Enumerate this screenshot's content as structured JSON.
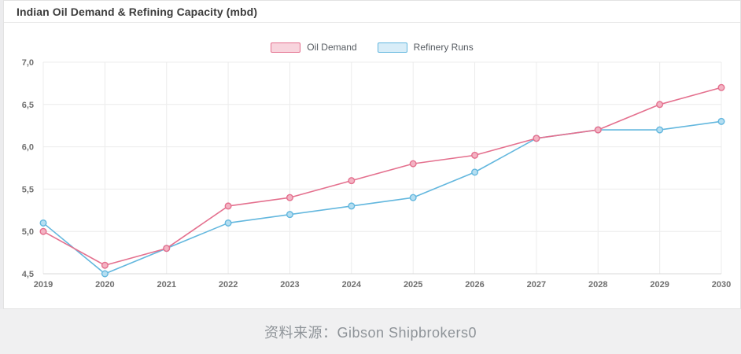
{
  "header": {
    "title": "Indian Oil Demand & Refining Capacity (mbd)"
  },
  "footer": {
    "source_text": "资料来源：Gibson Shipbrokers0"
  },
  "colors": {
    "oil_demand_line": "#e4708e",
    "oil_demand_marker_fill": "#f3b3c3",
    "oil_demand_swatch_fill": "#f8d4dd",
    "refinery_runs_line": "#63b7de",
    "refinery_runs_marker_fill": "#b5def1",
    "refinery_runs_swatch_fill": "#d8edf8",
    "grid": "#ececec",
    "axis_line": "#d8d8d8",
    "tick_text": "#6f6f6f"
  },
  "chart_data": {
    "type": "line",
    "title": "Indian Oil Demand & Refining Capacity (mbd)",
    "categories": [
      "2019",
      "2020",
      "2021",
      "2022",
      "2023",
      "2024",
      "2025",
      "2026",
      "2027",
      "2028",
      "2029",
      "2030"
    ],
    "series": [
      {
        "name": "Oil Demand",
        "color": "#e4708e",
        "marker_fill": "#f3b3c3",
        "values": [
          5.0,
          4.6,
          4.8,
          5.3,
          5.4,
          5.6,
          5.8,
          5.9,
          6.1,
          6.2,
          6.5,
          6.7
        ]
      },
      {
        "name": "Refinery Runs",
        "color": "#63b7de",
        "marker_fill": "#b5def1",
        "values": [
          5.1,
          4.5,
          4.8,
          5.1,
          5.2,
          5.3,
          5.4,
          5.7,
          6.1,
          6.2,
          6.2,
          6.3
        ]
      }
    ],
    "xlabel": "",
    "ylabel": "",
    "ylim": [
      4.5,
      7.0
    ],
    "ytick_step": 0.5,
    "ytick_labels": [
      "4,5",
      "5,0",
      "5,5",
      "6,0",
      "6,5",
      "7,0"
    ],
    "decimal_separator": ",",
    "grid": true,
    "legend_position": "top-center"
  }
}
